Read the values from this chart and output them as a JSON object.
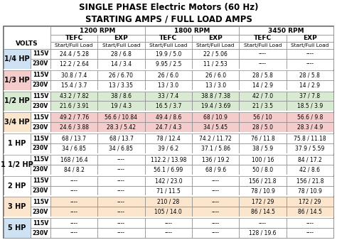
{
  "title1": "SINGLE PHASE Electric Motors (60 Hz)",
  "title2": "STARTING AMPS / FULL LOAD AMPS",
  "hp_groups": [
    "1/4 HP",
    "1/3 HP",
    "1/2 HP",
    "3/4 HP",
    "1 HP",
    "1 1/2 HP",
    "2 HP",
    "3 HP",
    "5 HP"
  ],
  "hp_label_colors": {
    "1/4 HP": "#cfe2f3",
    "1/3 HP": "#f4cccc",
    "1/2 HP": "#d9ead3",
    "3/4 HP": "#fce5cd",
    "1 HP": "#ffffff",
    "1 1/2 HP": "#ffffff",
    "2 HP": "#ffffff",
    "3 HP": "#fce5cd",
    "5 HP": "#cfe2f3"
  },
  "hp_row_colors": {
    "1/4 HP": "#ffffff",
    "1/3 HP": "#ffffff",
    "1/2 HP": "#d9ead3",
    "3/4 HP": "#f4cccc",
    "1 HP": "#ffffff",
    "1 1/2 HP": "#ffffff",
    "2 HP": "#ffffff",
    "3 HP": "#fce5cd",
    "5 HP": "#ffffff"
  },
  "table_data": [
    [
      "1/4 HP",
      "115V",
      "24.4 / 5.28",
      "28 / 6.8",
      "19.9 / 5.0",
      "22 / 5.06",
      "----",
      "----"
    ],
    [
      "1/4 HP",
      "230V",
      "12.2 / 2.64",
      "14 / 3.4",
      "9.95 / 2.5",
      "11 / 2.53",
      "----",
      "----"
    ],
    [
      "1/3 HP",
      "115V",
      "30.8 / 7.4",
      "26 / 6.70",
      "26 / 6.0",
      "26 / 6.0",
      "28 / 5.8",
      "28 / 5.8"
    ],
    [
      "1/3 HP",
      "230V",
      "15.4 / 3.7",
      "13 / 3.35",
      "13 / 3.0",
      "13 / 3.0",
      "14 / 2.9",
      "14 / 2.9"
    ],
    [
      "1/2 HP",
      "115V",
      "43.2 / 7.82",
      "38 / 8.6",
      "33 / 7.4",
      "38.8 / 7.38",
      "42 / 7.0",
      "37 / 7.8"
    ],
    [
      "1/2 HP",
      "230V",
      "21.6 / 3.91",
      "19 / 4.3",
      "16.5 / 3.7",
      "19.4 / 3.69",
      "21 / 3.5",
      "18.5 / 3.9"
    ],
    [
      "3/4 HP",
      "115V",
      "49.2 / 7.76",
      "56.6 / 10.84",
      "49.4 / 8.6",
      "68 / 10.9",
      "56 / 10",
      "56.6 / 9.8"
    ],
    [
      "3/4 HP",
      "230V",
      "24.6 / 3.88",
      "28.3 / 5.42",
      "24.7 / 4.3",
      "34 / 5.45",
      "28 / 5.0",
      "28.3 / 4.9"
    ],
    [
      "1 HP",
      "115V",
      "68 / 13.7",
      "68 / 13.7",
      "78 / 12.4",
      "74.2 / 11.72",
      "76 / 11.8",
      "75.8 / 11.18"
    ],
    [
      "1 HP",
      "230V",
      "34 / 6.85",
      "34 / 6.85",
      "39 / 6.2",
      "37.1 / 5.86",
      "38 / 5.9",
      "37.9 / 5.59"
    ],
    [
      "1 1/2 HP",
      "115V",
      "168 / 16.4",
      "----",
      "112.2 / 13.98",
      "136 / 19.2",
      "100 / 16",
      "84 / 17.2"
    ],
    [
      "1 1/2 HP",
      "230V",
      "84 / 8.2",
      "----",
      "56.1 / 6.99",
      "68 / 9.6",
      "50 / 8.0",
      "42 / 8.6"
    ],
    [
      "2 HP",
      "115V",
      "----",
      "----",
      "142 / 23.0",
      "----",
      "156 / 21.8",
      "156 / 21.8"
    ],
    [
      "2 HP",
      "230V",
      "----",
      "----",
      "71 / 11.5",
      "----",
      "78 / 10.9",
      "78 / 10.9"
    ],
    [
      "3 HP",
      "115V",
      "----",
      "----",
      "210 / 28",
      "----",
      "172 / 29",
      "172 / 29"
    ],
    [
      "3 HP",
      "230V",
      "----",
      "----",
      "105 / 14.0",
      "----",
      "86 / 14.5",
      "86 / 14.5"
    ],
    [
      "5 HP",
      "115V",
      "----",
      "----",
      "----",
      "----",
      "----",
      "----"
    ],
    [
      "5 HP",
      "230V",
      "----",
      "----",
      "----",
      "----",
      "128 / 19.6",
      "----"
    ]
  ],
  "bg_color": "#ffffff",
  "text_color": "#000000",
  "title_fontsize": 8.5,
  "header_fontsize": 6.5,
  "cell_fontsize": 5.5,
  "hp_fontsize": 7.0
}
